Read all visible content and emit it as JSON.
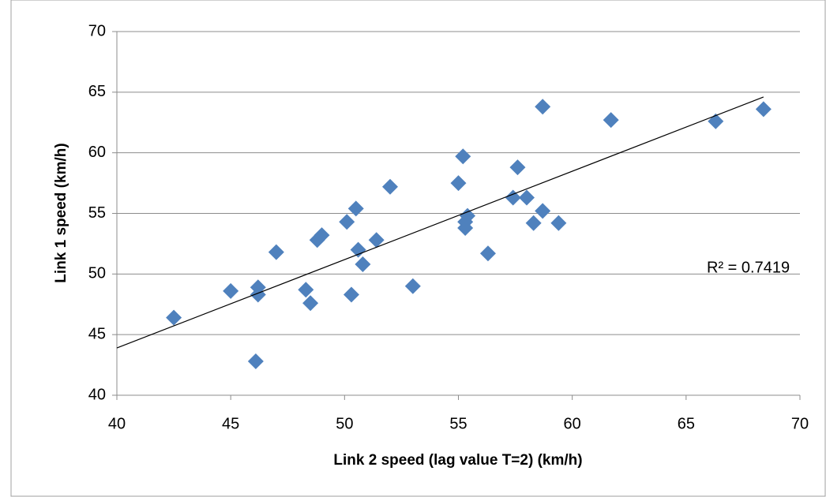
{
  "chart_data": {
    "type": "scatter",
    "x_label": "Link 2 speed (lag value T=2) (km/h)",
    "y_label": "Link 1 speed (km/h)",
    "series": [
      {
        "color": "#4f81bd",
        "x": [
          42.5,
          45.0,
          46.1,
          46.2,
          46.2,
          47.0,
          48.3,
          48.5,
          48.8,
          49.0,
          50.1,
          50.3,
          50.5,
          50.6,
          50.8,
          51.4,
          52.0,
          53.0,
          55.0,
          55.2,
          55.3,
          55.3,
          55.4,
          56.3,
          57.4,
          57.6,
          58.0,
          58.3,
          58.7,
          58.7,
          59.4,
          61.7,
          66.3,
          68.4
        ],
        "values": [
          46.4,
          48.6,
          42.8,
          48.3,
          48.9,
          51.8,
          48.7,
          47.6,
          52.8,
          53.2,
          54.3,
          48.3,
          55.4,
          52.0,
          50.8,
          52.8,
          57.2,
          49.0,
          57.5,
          59.7,
          54.3,
          53.8,
          54.8,
          51.7,
          56.3,
          58.8,
          56.3,
          54.2,
          63.8,
          55.2,
          54.2,
          62.7,
          62.6,
          63.6
        ]
      }
    ],
    "trendline": {
      "color": "#000000",
      "x": [
        40,
        68.4
      ],
      "values": [
        43.9,
        64.6
      ]
    },
    "annotation": "R² = 0.7419",
    "xlim": [
      40,
      70
    ],
    "xticks": [
      40,
      45,
      50,
      55,
      60,
      65,
      70
    ],
    "ylim": [
      40,
      70
    ],
    "yticks": [
      40,
      45,
      50,
      55,
      60,
      65,
      70
    ],
    "grid": true
  }
}
